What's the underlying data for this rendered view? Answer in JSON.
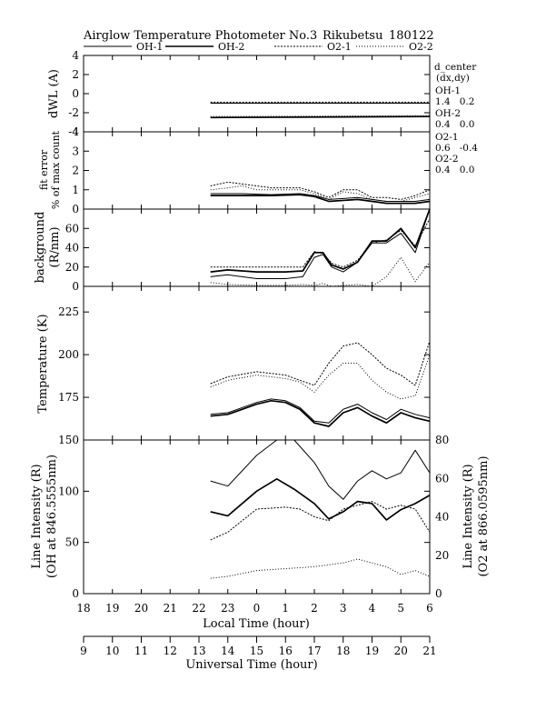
{
  "title": {
    "instrument": "Airglow Temperature Photometer No.3",
    "site": "Rikubetsu",
    "date": "180122"
  },
  "legend": {
    "oh1": "OH-1",
    "oh2": "OH-2",
    "o21": "O2-1",
    "o22": "O2-2"
  },
  "side_text": {
    "header1": "d_center",
    "header2": "(dx,dy)",
    "oh1_label": "OH-1",
    "oh1_vals": "1.4   0.2",
    "oh2_label": "OH-2",
    "oh2_vals": "0.4   0.0",
    "o21_label": "O2-1",
    "o21_vals": "0.6   -0.4",
    "o22_label": "O2-2",
    "o22_vals": "0.4   0.0"
  },
  "axes": {
    "xlabel_bottom": "Local Time (hour)",
    "xlabel_ut": "Universal Time (hour)",
    "xticks_lt": [
      "18",
      "19",
      "20",
      "21",
      "22",
      "23",
      "0",
      "1",
      "2",
      "3",
      "4",
      "5",
      "6"
    ],
    "xticks_ut": [
      "9",
      "10",
      "11",
      "12",
      "13",
      "14",
      "15",
      "16",
      "17",
      "18",
      "19",
      "20",
      "21"
    ]
  },
  "chart_data": [
    {
      "type": "line",
      "panel": "dWL",
      "ylabel": "dWL (A)",
      "ylim": [
        -4,
        4
      ],
      "yticks": [
        "4",
        "2",
        "0",
        "-2",
        "-4"
      ],
      "x_unit": "local time hour (18 to 30)",
      "series": [
        {
          "name": "OH-1",
          "x": [
            22.4,
            30
          ],
          "values": [
            -1.0,
            -1.0
          ]
        },
        {
          "name": "OH-2",
          "x": [
            22.4,
            30
          ],
          "values": [
            -2.5,
            -2.4
          ]
        },
        {
          "name": "O2-1",
          "x": [
            22.4,
            30
          ],
          "values": [
            -0.9,
            -0.9
          ]
        },
        {
          "name": "O2-2",
          "x": [
            22.4,
            30
          ],
          "values": [
            -2.4,
            -2.3
          ]
        }
      ]
    },
    {
      "type": "line",
      "panel": "fit_error",
      "ylabel": "fit error",
      "ylabel2": "% of max count",
      "ylim": [
        0,
        4
      ],
      "yticks": [
        "4",
        "3",
        "2",
        "1",
        "0"
      ],
      "series": [
        {
          "name": "OH-1",
          "x": [
            22.4,
            23.5,
            24.5,
            25.5,
            26.0,
            26.5,
            27.5,
            28.5,
            29.5,
            30.0
          ],
          "values": [
            0.8,
            0.8,
            0.75,
            0.8,
            0.7,
            0.5,
            0.6,
            0.4,
            0.4,
            0.5
          ]
        },
        {
          "name": "OH-2",
          "x": [
            22.4,
            23.5,
            24.5,
            25.5,
            26.0,
            26.5,
            27.5,
            28.5,
            29.5,
            30.0
          ],
          "values": [
            0.7,
            0.7,
            0.7,
            0.75,
            0.65,
            0.4,
            0.5,
            0.3,
            0.3,
            0.4
          ]
        },
        {
          "name": "O2-1",
          "x": [
            22.4,
            23.0,
            23.5,
            24.0,
            24.5,
            25.5,
            26.0,
            26.5,
            27.0,
            27.5,
            28.0,
            28.5,
            29.0,
            29.5,
            30.0
          ],
          "values": [
            1.2,
            1.4,
            1.3,
            1.2,
            1.1,
            1.1,
            0.9,
            0.6,
            1.0,
            1.0,
            0.6,
            0.6,
            0.5,
            0.7,
            1.0
          ]
        },
        {
          "name": "O2-2",
          "x": [
            22.4,
            23.0,
            23.5,
            24.0,
            24.5,
            25.5,
            26.0,
            26.5,
            27.0,
            27.5,
            28.0,
            28.5,
            29.0,
            29.5,
            30.0
          ],
          "values": [
            1.0,
            1.1,
            1.2,
            1.0,
            1.0,
            1.0,
            0.8,
            0.5,
            0.9,
            0.8,
            0.5,
            0.4,
            0.4,
            0.6,
            0.8
          ]
        }
      ]
    },
    {
      "type": "line",
      "panel": "background",
      "ylabel": "background",
      "ylabel2": "(R/nm)",
      "ylim": [
        0,
        80
      ],
      "yticks": [
        "60",
        "40",
        "20",
        "0"
      ],
      "series": [
        {
          "name": "OH-1",
          "x": [
            22.4,
            23.0,
            24.0,
            25.0,
            25.6,
            26.0,
            26.3,
            26.6,
            27.0,
            27.5,
            28.0,
            28.5,
            29.0,
            29.5,
            30.0
          ],
          "values": [
            10,
            12,
            8,
            8,
            10,
            30,
            33,
            20,
            15,
            25,
            45,
            45,
            55,
            35,
            80
          ]
        },
        {
          "name": "OH-2",
          "x": [
            22.4,
            23.0,
            24.0,
            25.0,
            25.6,
            26.0,
            26.3,
            26.6,
            27.0,
            27.5,
            28.0,
            28.5,
            29.0,
            29.5,
            30.0
          ],
          "values": [
            15,
            17,
            15,
            15,
            16,
            35,
            35,
            22,
            18,
            25,
            47,
            47,
            60,
            40,
            80
          ]
        },
        {
          "name": "O2-1",
          "x": [
            22.4,
            23.0,
            24.0,
            25.0,
            25.6,
            26.0,
            26.3,
            26.6,
            27.0,
            27.5,
            28.0,
            28.5,
            29.0,
            29.5,
            30.0
          ],
          "values": [
            20,
            20,
            20,
            20,
            20,
            36,
            34,
            24,
            20,
            27,
            45,
            48,
            58,
            42,
            70
          ]
        },
        {
          "name": "O2-2",
          "x": [
            22.4,
            23.0,
            24.0,
            25.0,
            25.6,
            26.0,
            26.3,
            26.6,
            27.0,
            27.5,
            28.0,
            28.5,
            29.0,
            29.5,
            30.0
          ],
          "values": [
            4,
            2,
            1,
            1,
            2,
            1,
            3,
            0,
            1,
            2,
            0,
            10,
            30,
            5,
            25
          ]
        }
      ]
    },
    {
      "type": "line",
      "panel": "temperature",
      "ylabel": "Temperature (K)",
      "ylim": [
        150,
        240
      ],
      "yticks": [
        "225",
        "200",
        "175"
      ],
      "series": [
        {
          "name": "OH-1",
          "x": [
            22.4,
            23.0,
            24.0,
            24.5,
            25.0,
            25.5,
            26.0,
            26.5,
            27.0,
            27.5,
            28.0,
            28.5,
            29.0,
            29.5,
            30.0
          ],
          "values": [
            165,
            166,
            172,
            174,
            173,
            169,
            161,
            160,
            168,
            171,
            166,
            162,
            168,
            165,
            163
          ]
        },
        {
          "name": "OH-2",
          "x": [
            22.4,
            23.0,
            24.0,
            24.5,
            25.0,
            25.5,
            26.0,
            26.5,
            27.0,
            27.5,
            28.0,
            28.5,
            29.0,
            29.5,
            30.0
          ],
          "values": [
            164,
            165,
            171,
            173,
            172,
            168,
            160,
            158,
            166,
            169,
            164,
            160,
            166,
            163,
            161
          ]
        },
        {
          "name": "O2-1",
          "x": [
            22.4,
            23.0,
            24.0,
            25.0,
            25.5,
            26.0,
            26.5,
            27.0,
            27.5,
            28.0,
            28.5,
            29.0,
            29.5,
            30.0
          ],
          "values": [
            183,
            187,
            190,
            188,
            185,
            182,
            195,
            205,
            207,
            200,
            192,
            188,
            182,
            208
          ]
        },
        {
          "name": "O2-2",
          "x": [
            22.4,
            23.0,
            24.0,
            25.0,
            25.5,
            26.0,
            26.5,
            27.0,
            27.5,
            28.0,
            28.5,
            29.0,
            29.5,
            30.0
          ],
          "values": [
            181,
            185,
            188,
            186,
            184,
            178,
            188,
            195,
            195,
            185,
            178,
            174,
            176,
            200
          ]
        }
      ]
    },
    {
      "type": "line",
      "panel": "intensity",
      "ylabel": "Line Intensity (R)",
      "ylabel2": "(OH at 846.5555nm)",
      "ylabel_right": "Line Intensity (R)",
      "ylabel_right2": "(O2 at 866.0595nm)",
      "ylim": [
        0,
        150
      ],
      "ylim_right": [
        0,
        80
      ],
      "yticks": [
        "150",
        "100",
        "50",
        "0"
      ],
      "yticks_right": [
        "80",
        "60",
        "40",
        "20",
        "0"
      ],
      "series": [
        {
          "name": "OH-1",
          "x": [
            22.4,
            23.0,
            24.0,
            24.7,
            25.3,
            26.0,
            26.5,
            27.0,
            27.5,
            28.0,
            28.5,
            29.0,
            29.5,
            30.0
          ],
          "values": [
            110,
            105,
            135,
            158,
            152,
            128,
            105,
            92,
            110,
            120,
            112,
            118,
            140,
            118
          ]
        },
        {
          "name": "OH-2",
          "x": [
            22.4,
            23.0,
            24.0,
            24.7,
            25.3,
            26.0,
            26.5,
            27.0,
            27.5,
            28.0,
            28.5,
            29.0,
            29.5,
            30.0
          ],
          "values": [
            80,
            76,
            100,
            112,
            102,
            88,
            73,
            80,
            90,
            88,
            72,
            82,
            88,
            96
          ]
        },
        {
          "name": "O2-1",
          "x": [
            22.4,
            23.0,
            24.0,
            25.0,
            25.5,
            26.0,
            26.5,
            27.0,
            27.5,
            28.0,
            28.5,
            29.0,
            29.5,
            30.0
          ],
          "values": [
            28,
            32,
            44,
            45,
            44,
            40,
            38,
            44,
            46,
            48,
            44,
            46,
            44,
            32
          ]
        },
        {
          "name": "O2-2",
          "x": [
            22.4,
            23.0,
            24.0,
            25.0,
            26.0,
            27.0,
            27.5,
            28.0,
            28.5,
            29.0,
            29.5,
            30.0
          ],
          "values": [
            8,
            9,
            12,
            13,
            14,
            16,
            18,
            16,
            14,
            10,
            12,
            9
          ]
        }
      ]
    }
  ]
}
